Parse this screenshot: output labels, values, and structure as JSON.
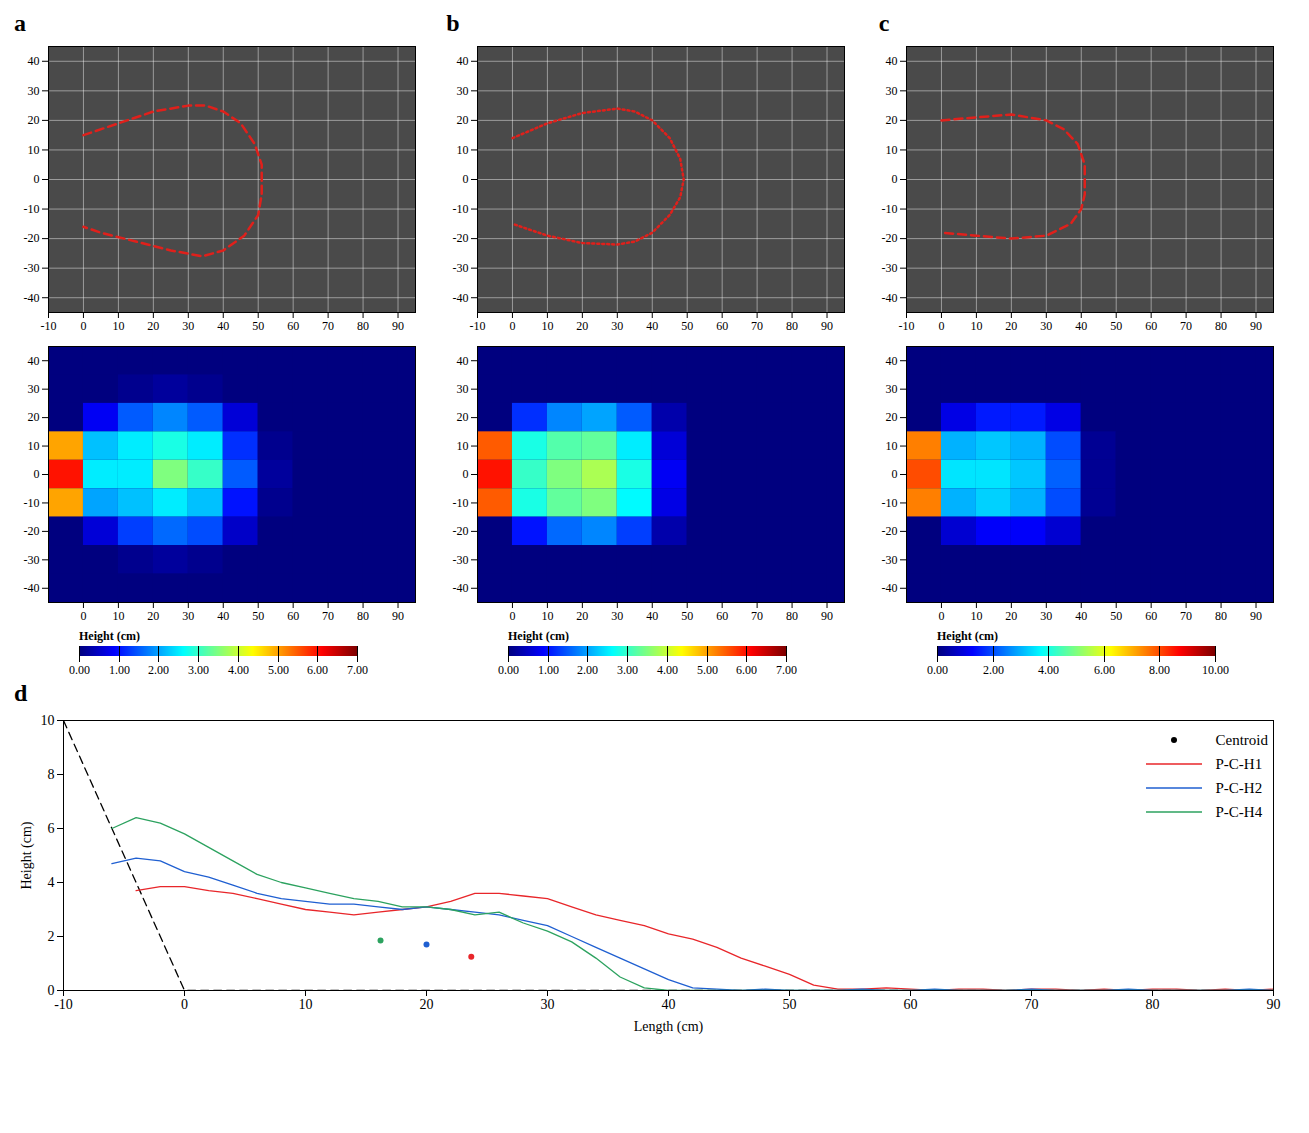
{
  "chart_data": [
    {
      "panel_label": "a",
      "type": "line",
      "grid": true,
      "xlim": [
        -10,
        95
      ],
      "xticks": [
        -10,
        0,
        10,
        20,
        30,
        40,
        50,
        60,
        70,
        80,
        90
      ],
      "ylim": [
        -45,
        45
      ],
      "yticks": [
        -40,
        -30,
        -20,
        -10,
        0,
        10,
        20,
        30,
        40
      ],
      "series": [
        {
          "color": "#e0201b",
          "line_style": "dashed",
          "x": [
            0,
            10,
            20,
            30,
            35,
            40,
            45,
            49,
            51,
            51,
            50,
            46,
            40,
            34,
            25,
            15,
            5,
            0
          ],
          "y": [
            15,
            19,
            23,
            25,
            25,
            23,
            19,
            12,
            5,
            -5,
            -12,
            -19,
            -24,
            -26,
            -24,
            -21,
            -18,
            -16
          ]
        }
      ]
    },
    {
      "panel_label": "b",
      "type": "line",
      "grid": true,
      "xlim": [
        -10,
        95
      ],
      "xticks": [
        -10,
        0,
        10,
        20,
        30,
        40,
        50,
        60,
        70,
        80,
        90
      ],
      "ylim": [
        -45,
        45
      ],
      "yticks": [
        -40,
        -30,
        -20,
        -10,
        0,
        10,
        20,
        30,
        40
      ],
      "series": [
        {
          "color": "#e0201b",
          "line_style": "dotted",
          "x": [
            0,
            10,
            20,
            30,
            35,
            40,
            45,
            48,
            49,
            48,
            45,
            40,
            35,
            30,
            20,
            10,
            0
          ],
          "y": [
            14,
            19,
            22.5,
            24,
            23,
            20,
            14,
            7,
            0,
            -6,
            -12,
            -18,
            -21,
            -22,
            -21.5,
            -19,
            -15
          ]
        }
      ]
    },
    {
      "panel_label": "c",
      "type": "line",
      "grid": true,
      "xlim": [
        -10,
        95
      ],
      "xticks": [
        -10,
        0,
        10,
        20,
        30,
        40,
        50,
        60,
        70,
        80,
        90
      ],
      "ylim": [
        -45,
        45
      ],
      "yticks": [
        -40,
        -30,
        -20,
        -10,
        0,
        10,
        20,
        30,
        40
      ],
      "series": [
        {
          "color": "#e0201b",
          "line_style": "dashed",
          "x": [
            0,
            10,
            20,
            30,
            35,
            39,
            41,
            41,
            40,
            37,
            30,
            20,
            10,
            0
          ],
          "y": [
            20,
            21,
            22,
            20,
            17,
            12,
            5,
            -5,
            -10,
            -15,
            -19,
            -20,
            -19,
            -18
          ]
        }
      ]
    },
    {
      "type": "heatmap",
      "xlim": [
        -10,
        95
      ],
      "xticks": [
        0,
        10,
        20,
        30,
        40,
        50,
        60,
        70,
        80,
        90
      ],
      "ylim": [
        -45,
        45
      ],
      "yticks": [
        -40,
        -30,
        -20,
        -10,
        0,
        10,
        20,
        30,
        40
      ],
      "x_edges": [
        -10,
        0,
        10,
        20,
        30,
        40,
        50,
        60,
        70,
        80,
        90
      ],
      "y_edges": [
        45,
        35,
        25,
        15,
        5,
        -5,
        -15,
        -25,
        -35,
        -45
      ],
      "values": [
        [
          0,
          0,
          0,
          0,
          0,
          0,
          0,
          0,
          0,
          0
        ],
        [
          0,
          0,
          0.1,
          0.2,
          0.1,
          0,
          0,
          0,
          0,
          0
        ],
        [
          0,
          0.8,
          1.5,
          1.8,
          1.5,
          0.6,
          0,
          0,
          0,
          0
        ],
        [
          5,
          2.2,
          2.5,
          2.8,
          2.5,
          1.2,
          0.1,
          0,
          0,
          0
        ],
        [
          6,
          2.5,
          2.5,
          3.5,
          3,
          1.5,
          0.2,
          0,
          0,
          0
        ],
        [
          5,
          2,
          2.2,
          2.5,
          2.2,
          1,
          0.1,
          0,
          0,
          0
        ],
        [
          0,
          0.6,
          1.3,
          1.6,
          1.4,
          0.5,
          0,
          0,
          0,
          0
        ],
        [
          0,
          0,
          0.1,
          0.2,
          0.1,
          0,
          0,
          0,
          0,
          0
        ],
        [
          0,
          0,
          0,
          0,
          0,
          0,
          0,
          0,
          0,
          0
        ]
      ],
      "colorbar": {
        "label": "Height (cm)",
        "range": [
          0,
          7
        ],
        "ticks": [
          {
            "value": 0,
            "label": "0.00"
          },
          {
            "value": 1,
            "label": "1.00"
          },
          {
            "value": 2,
            "label": "2.00"
          },
          {
            "value": 3,
            "label": "3.00"
          },
          {
            "value": 4,
            "label": "4.00"
          },
          {
            "value": 5,
            "label": "5.00"
          },
          {
            "value": 6,
            "label": "6.00"
          },
          {
            "value": 7,
            "label": "7.00"
          }
        ]
      }
    },
    {
      "type": "heatmap",
      "xlim": [
        -10,
        95
      ],
      "xticks": [
        0,
        10,
        20,
        30,
        40,
        50,
        60,
        70,
        80,
        90
      ],
      "ylim": [
        -45,
        45
      ],
      "yticks": [
        -40,
        -30,
        -20,
        -10,
        0,
        10,
        20,
        30,
        40
      ],
      "x_edges": [
        -10,
        0,
        10,
        20,
        30,
        40,
        50,
        60,
        70,
        80,
        90
      ],
      "y_edges": [
        45,
        35,
        25,
        15,
        5,
        -5,
        -15,
        -25,
        -35,
        -45
      ],
      "values": [
        [
          0,
          0,
          0,
          0,
          0,
          0,
          0,
          0,
          0,
          0
        ],
        [
          0,
          0,
          0,
          0,
          0,
          0,
          0,
          0,
          0,
          0
        ],
        [
          0,
          1.2,
          1.8,
          2,
          1.5,
          0.3,
          0,
          0,
          0,
          0
        ],
        [
          5.5,
          2.8,
          3.2,
          3.3,
          2.5,
          0.6,
          0,
          0,
          0,
          0
        ],
        [
          6,
          3,
          3.5,
          3.8,
          2.8,
          0.8,
          0,
          0,
          0,
          0
        ],
        [
          5.5,
          2.8,
          3.3,
          3.5,
          2.6,
          0.7,
          0,
          0,
          0,
          0
        ],
        [
          0,
          1,
          1.6,
          1.8,
          1.3,
          0.3,
          0,
          0,
          0,
          0
        ],
        [
          0,
          0,
          0,
          0,
          0,
          0,
          0,
          0,
          0,
          0
        ],
        [
          0,
          0,
          0,
          0,
          0,
          0,
          0,
          0,
          0,
          0
        ]
      ],
      "colorbar": {
        "label": "Height (cm)",
        "range": [
          0,
          7
        ],
        "ticks": [
          {
            "value": 0,
            "label": "0.00"
          },
          {
            "value": 1,
            "label": "1.00"
          },
          {
            "value": 2,
            "label": "2.00"
          },
          {
            "value": 3,
            "label": "3.00"
          },
          {
            "value": 4,
            "label": "4.00"
          },
          {
            "value": 5,
            "label": "5.00"
          },
          {
            "value": 6,
            "label": "6.00"
          },
          {
            "value": 7,
            "label": "7.00"
          }
        ]
      }
    },
    {
      "type": "heatmap",
      "xlim": [
        -10,
        95
      ],
      "xticks": [
        0,
        10,
        20,
        30,
        40,
        50,
        60,
        70,
        80,
        90
      ],
      "ylim": [
        -45,
        45
      ],
      "yticks": [
        -40,
        -30,
        -20,
        -10,
        0,
        10,
        20,
        30,
        40
      ],
      "x_edges": [
        -10,
        0,
        10,
        20,
        30,
        40,
        50,
        60,
        70,
        80,
        90
      ],
      "y_edges": [
        45,
        35,
        25,
        15,
        5,
        -5,
        -15,
        -25,
        -35,
        -45
      ],
      "values": [
        [
          0,
          0,
          0,
          0,
          0,
          0,
          0,
          0,
          0,
          0
        ],
        [
          0,
          0,
          0,
          0,
          0,
          0,
          0,
          0,
          0,
          0
        ],
        [
          0,
          1,
          1.5,
          1.5,
          1,
          0,
          0,
          0,
          0,
          0
        ],
        [
          7.5,
          3,
          3.2,
          3,
          2,
          0.2,
          0,
          0,
          0,
          0
        ],
        [
          8,
          3.5,
          3.5,
          3.2,
          2.2,
          0.2,
          0,
          0,
          0,
          0
        ],
        [
          7.5,
          3,
          3.3,
          3,
          2,
          0.2,
          0,
          0,
          0,
          0
        ],
        [
          0,
          0.8,
          1.2,
          1.2,
          0.8,
          0,
          0,
          0,
          0,
          0
        ],
        [
          0,
          0,
          0,
          0,
          0,
          0,
          0,
          0,
          0,
          0
        ],
        [
          0,
          0,
          0,
          0,
          0,
          0,
          0,
          0,
          0,
          0
        ]
      ],
      "colorbar": {
        "label": "Height (cm)",
        "range": [
          0,
          10
        ],
        "ticks": [
          {
            "value": 0,
            "label": "0.00"
          },
          {
            "value": 2,
            "label": "2.00"
          },
          {
            "value": 4,
            "label": "4.00"
          },
          {
            "value": 6,
            "label": "6.00"
          },
          {
            "value": 8,
            "label": "8.00"
          },
          {
            "value": 10,
            "label": "10.00"
          }
        ]
      }
    },
    {
      "panel_label": "d",
      "type": "line",
      "xlabel": "Length (cm)",
      "ylabel": "Height (cm)",
      "xlim": [
        -10,
        90
      ],
      "xticks": [
        -10,
        0,
        10,
        20,
        30,
        40,
        50,
        60,
        70,
        80,
        90
      ],
      "ylim": [
        0,
        10
      ],
      "yticks": [
        0,
        2,
        4,
        6,
        8,
        10
      ],
      "legend": "top-right",
      "x": [
        -6,
        -4,
        -2,
        0,
        2,
        4,
        6,
        8,
        10,
        12,
        14,
        16,
        18,
        20,
        22,
        24,
        26,
        28,
        30,
        32,
        34,
        36,
        38,
        40,
        42,
        44,
        46,
        48,
        50,
        52,
        54,
        56,
        58,
        60,
        62,
        64,
        66,
        68,
        70,
        72,
        74,
        76,
        78,
        80,
        82,
        84,
        86,
        88,
        90
      ],
      "series": [
        {
          "name": "P-C-H1",
          "color": "#e8262a",
          "values": [
            null,
            3.7,
            3.85,
            3.85,
            3.7,
            3.6,
            3.4,
            3.2,
            3.0,
            2.9,
            2.8,
            2.9,
            3.0,
            3.1,
            3.3,
            3.6,
            3.6,
            3.5,
            3.4,
            3.1,
            2.8,
            2.6,
            2.4,
            2.1,
            1.9,
            1.6,
            1.2,
            0.9,
            0.6,
            0.2,
            0.05,
            0.05,
            0.1,
            0.05,
            0,
            0.05,
            0.05,
            0,
            0.05,
            0.05,
            0,
            0.05,
            0,
            0.05,
            0.05,
            0,
            0.05,
            0,
            0.05
          ]
        },
        {
          "name": "P-C-H2",
          "color": "#1f5fd1",
          "values": [
            4.7,
            4.9,
            4.8,
            4.4,
            4.2,
            3.9,
            3.6,
            3.4,
            3.3,
            3.2,
            3.2,
            3.1,
            3.0,
            3.1,
            3.0,
            2.9,
            2.8,
            2.6,
            2.4,
            2.0,
            1.6,
            1.2,
            0.8,
            0.4,
            0.1,
            0.05,
            0,
            0.05,
            0,
            0,
            0,
            0.05,
            0,
            0,
            0.05,
            0,
            0,
            0,
            0.05,
            0,
            0,
            0,
            0.05,
            0,
            0,
            0,
            0,
            0.05,
            0
          ]
        },
        {
          "name": "P-C-H4",
          "color": "#2ca25f",
          "values": [
            6.0,
            6.4,
            6.2,
            5.8,
            5.3,
            4.8,
            4.3,
            4.0,
            3.8,
            3.6,
            3.4,
            3.3,
            3.1,
            3.1,
            3.0,
            2.8,
            2.9,
            2.5,
            2.2,
            1.8,
            1.2,
            0.5,
            0.1,
            0,
            0,
            0,
            0,
            0,
            0,
            0,
            0,
            0,
            0,
            0,
            0,
            0,
            0,
            0,
            0,
            0,
            0,
            0,
            0,
            0,
            0,
            0,
            0,
            0,
            0
          ]
        }
      ],
      "reference_line": {
        "color": "#000000",
        "line_style": "dashed",
        "x": [
          -10,
          0,
          90
        ],
        "y": [
          10,
          0,
          0
        ]
      },
      "centroids": {
        "name": "Centroid",
        "color": "#000000",
        "points": [
          {
            "series": "P-C-H1",
            "x": 23.7,
            "y": 1.25
          },
          {
            "series": "P-C-H2",
            "x": 20,
            "y": 1.7
          },
          {
            "series": "P-C-H4",
            "x": 16.2,
            "y": 1.85
          }
        ]
      }
    }
  ]
}
